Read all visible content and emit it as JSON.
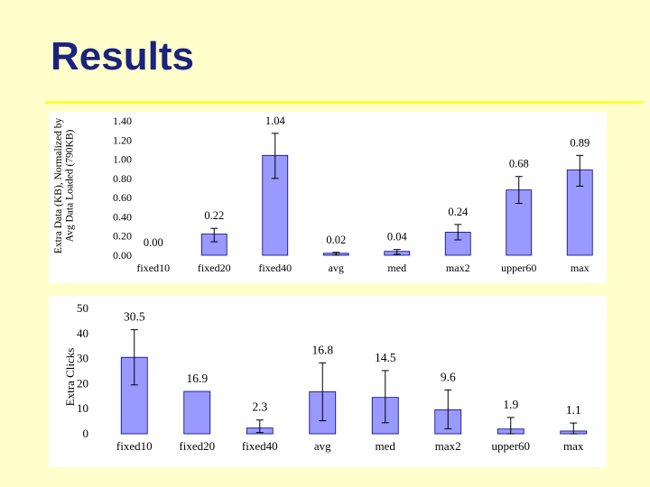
{
  "page": {
    "title": "Results"
  },
  "colors": {
    "bar_fill": "#9999ff",
    "bar_stroke": "#000080",
    "background": "#ffffcc",
    "title": "#1a237e",
    "rule": "#ffff33"
  },
  "chart_data": [
    {
      "type": "bar",
      "categories": [
        "fixed10",
        "fixed20",
        "fixed40",
        "avg",
        "med",
        "max2",
        "upper60",
        "max"
      ],
      "values": [
        0.0,
        0.22,
        1.04,
        0.02,
        0.04,
        0.24,
        0.68,
        0.89
      ],
      "value_labels": [
        "0.00",
        "0.22",
        "1.04",
        "0.02",
        "0.04",
        "0.24",
        "0.68",
        "0.89"
      ],
      "error_low": [
        0.0,
        0.14,
        0.8,
        0.0,
        0.01,
        0.16,
        0.54,
        0.72
      ],
      "error_high": [
        0.0,
        0.28,
        1.27,
        0.03,
        0.06,
        0.32,
        0.82,
        1.04
      ],
      "ylabel_lines": [
        "Extra Data (KB), Normalized by",
        "Avg Data Loaded (790KB)"
      ],
      "xlabel": "",
      "ylim": [
        0,
        1.4
      ],
      "yticks": [
        "0.00",
        "0.20",
        "0.40",
        "0.60",
        "0.80",
        "1.00",
        "1.20",
        "1.40"
      ],
      "grid": false
    },
    {
      "type": "bar",
      "categories": [
        "fixed10",
        "fixed20",
        "fixed40",
        "avg",
        "med",
        "max2",
        "upper60",
        "max"
      ],
      "values": [
        30.5,
        16.9,
        2.3,
        16.8,
        14.5,
        9.6,
        1.9,
        1.1
      ],
      "value_labels": [
        "30.5",
        "16.9",
        "2.3",
        "16.8",
        "14.5",
        "9.6",
        "1.9",
        "1.1"
      ],
      "error_low": [
        19.5,
        16.9,
        0.5,
        5.2,
        4.4,
        2.0,
        0.0,
        0.0
      ],
      "error_high": [
        41.5,
        16.9,
        5.5,
        28.3,
        25.2,
        17.5,
        6.5,
        4.3
      ],
      "ylabel_lines": [
        "Extra Clicks"
      ],
      "xlabel": "",
      "ylim": [
        0,
        50
      ],
      "yticks": [
        "0",
        "10",
        "20",
        "30",
        "40",
        "50"
      ],
      "grid": false
    }
  ]
}
